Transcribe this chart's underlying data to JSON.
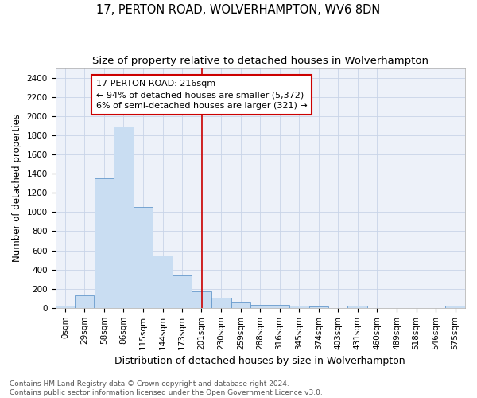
{
  "title1": "17, PERTON ROAD, WOLVERHAMPTON, WV6 8DN",
  "title2": "Size of property relative to detached houses in Wolverhampton",
  "xlabel": "Distribution of detached houses by size in Wolverhampton",
  "ylabel": "Number of detached properties",
  "bin_labels": [
    "0sqm",
    "29sqm",
    "58sqm",
    "86sqm",
    "115sqm",
    "144sqm",
    "173sqm",
    "201sqm",
    "230sqm",
    "259sqm",
    "288sqm",
    "316sqm",
    "345sqm",
    "374sqm",
    "403sqm",
    "431sqm",
    "460sqm",
    "489sqm",
    "518sqm",
    "546sqm",
    "575sqm"
  ],
  "bin_left_edges": [
    0,
    29,
    58,
    86,
    115,
    144,
    173,
    201,
    230,
    259,
    288,
    316,
    345,
    374,
    403,
    431,
    460,
    489,
    518,
    546,
    575
  ],
  "bin_widths": [
    29,
    28,
    28,
    29,
    29,
    29,
    28,
    29,
    29,
    29,
    28,
    29,
    29,
    29,
    28,
    29,
    29,
    29,
    28,
    29,
    29
  ],
  "bar_heights": [
    20,
    130,
    1350,
    1890,
    1050,
    550,
    340,
    170,
    110,
    55,
    35,
    30,
    25,
    18,
    0,
    20,
    0,
    0,
    0,
    0,
    20
  ],
  "bar_color": "#c9ddf2",
  "bar_edge_color": "#6699cc",
  "property_value": 216,
  "vline_color": "#cc0000",
  "annotation_text": "17 PERTON ROAD: 216sqm\n← 94% of detached houses are smaller (5,372)\n6% of semi-detached houses are larger (321) →",
  "annotation_box_color": "#ffffff",
  "annotation_box_edge": "#cc0000",
  "ylim": [
    0,
    2500
  ],
  "yticks": [
    0,
    200,
    400,
    600,
    800,
    1000,
    1200,
    1400,
    1600,
    1800,
    2000,
    2200,
    2400
  ],
  "grid_color": "#c8d4e8",
  "bg_color": "#edf1f9",
  "footer_text": "Contains HM Land Registry data © Crown copyright and database right 2024.\nContains public sector information licensed under the Open Government Licence v3.0.",
  "title1_fontsize": 10.5,
  "title2_fontsize": 9.5,
  "xlabel_fontsize": 9,
  "ylabel_fontsize": 8.5,
  "tick_fontsize": 7.5,
  "annotation_fontsize": 8,
  "footer_fontsize": 6.5
}
